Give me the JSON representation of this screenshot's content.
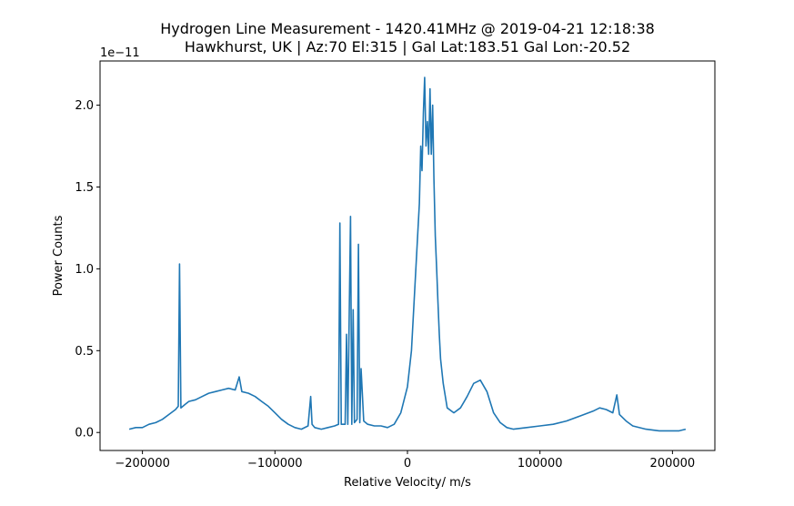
{
  "chart_data": {
    "type": "line",
    "title": "Hydrogen Line Measurement - 1420.41MHz @ 2019-04-21 12:18:38",
    "subtitle": "Hawkhurst, UK | Az:70 El:315 | Gal Lat:183.51 Gal Lon:-20.52",
    "xlabel": "Relative Velocity/ m/s",
    "ylabel": "Power Counts",
    "y_offset_label": "1e−11",
    "xlim": [
      -232000,
      232000
    ],
    "ylim": [
      -0.11,
      2.27
    ],
    "y_scale": 1e-11,
    "x_ticks": [
      -200000,
      -100000,
      0,
      100000,
      200000
    ],
    "x_tick_labels": [
      "−200000",
      "−100000",
      "0",
      "100000",
      "200000"
    ],
    "y_ticks": [
      0.0,
      0.5,
      1.0,
      1.5,
      2.0
    ],
    "y_tick_labels": [
      "0.0",
      "0.5",
      "1.0",
      "1.5",
      "2.0"
    ],
    "grid": false,
    "legend": "none",
    "color": "#1f77b4",
    "series": [
      {
        "x": [
          -210000,
          -205000,
          -200000,
          -195000,
          -190000,
          -185000,
          -180000,
          -175000,
          -173000,
          -172000,
          -171000,
          -168000,
          -165000,
          -160000,
          -155000,
          -150000,
          -145000,
          -140000,
          -135000,
          -130000,
          -127000,
          -125000,
          -120000,
          -115000,
          -110000,
          -105000,
          -100000,
          -95000,
          -90000,
          -85000,
          -80000,
          -75000,
          -73000,
          -72000,
          -70000,
          -65000,
          -60000,
          -55000,
          -52000,
          -51000,
          -50000,
          -47000,
          -46000,
          -45000,
          -43000,
          -42000,
          -41000,
          -40000,
          -38000,
          -37000,
          -36000,
          -35000,
          -33000,
          -30000,
          -25000,
          -20000,
          -15000,
          -10000,
          -5000,
          0,
          3000,
          5000,
          7000,
          9000,
          10000,
          11000,
          12000,
          13000,
          14000,
          15000,
          16000,
          17000,
          18000,
          19000,
          20000,
          21000,
          22000,
          23000,
          24000,
          25000,
          27000,
          30000,
          35000,
          40000,
          45000,
          50000,
          55000,
          60000,
          65000,
          70000,
          75000,
          80000,
          90000,
          100000,
          110000,
          120000,
          130000,
          140000,
          145000,
          150000,
          155000,
          158000,
          160000,
          165000,
          170000,
          180000,
          190000,
          200000,
          205000,
          210000
        ],
        "y": [
          0.02,
          0.03,
          0.03,
          0.05,
          0.06,
          0.08,
          0.11,
          0.14,
          0.16,
          1.03,
          0.15,
          0.17,
          0.19,
          0.2,
          0.22,
          0.24,
          0.25,
          0.26,
          0.27,
          0.26,
          0.34,
          0.25,
          0.24,
          0.22,
          0.19,
          0.16,
          0.12,
          0.08,
          0.05,
          0.03,
          0.02,
          0.04,
          0.22,
          0.05,
          0.03,
          0.02,
          0.03,
          0.04,
          0.05,
          1.28,
          0.05,
          0.05,
          0.6,
          0.05,
          1.32,
          0.05,
          0.75,
          0.06,
          0.08,
          1.15,
          0.06,
          0.39,
          0.07,
          0.05,
          0.04,
          0.04,
          0.03,
          0.05,
          0.12,
          0.28,
          0.5,
          0.8,
          1.1,
          1.4,
          1.75,
          1.6,
          1.95,
          2.17,
          1.75,
          1.9,
          1.7,
          2.1,
          1.7,
          2.0,
          1.55,
          1.2,
          1.0,
          0.8,
          0.6,
          0.45,
          0.3,
          0.15,
          0.12,
          0.15,
          0.22,
          0.3,
          0.32,
          0.25,
          0.12,
          0.06,
          0.03,
          0.02,
          0.03,
          0.04,
          0.05,
          0.07,
          0.1,
          0.13,
          0.15,
          0.14,
          0.12,
          0.23,
          0.11,
          0.07,
          0.04,
          0.02,
          0.01,
          0.01,
          0.01,
          0.02
        ]
      }
    ]
  }
}
